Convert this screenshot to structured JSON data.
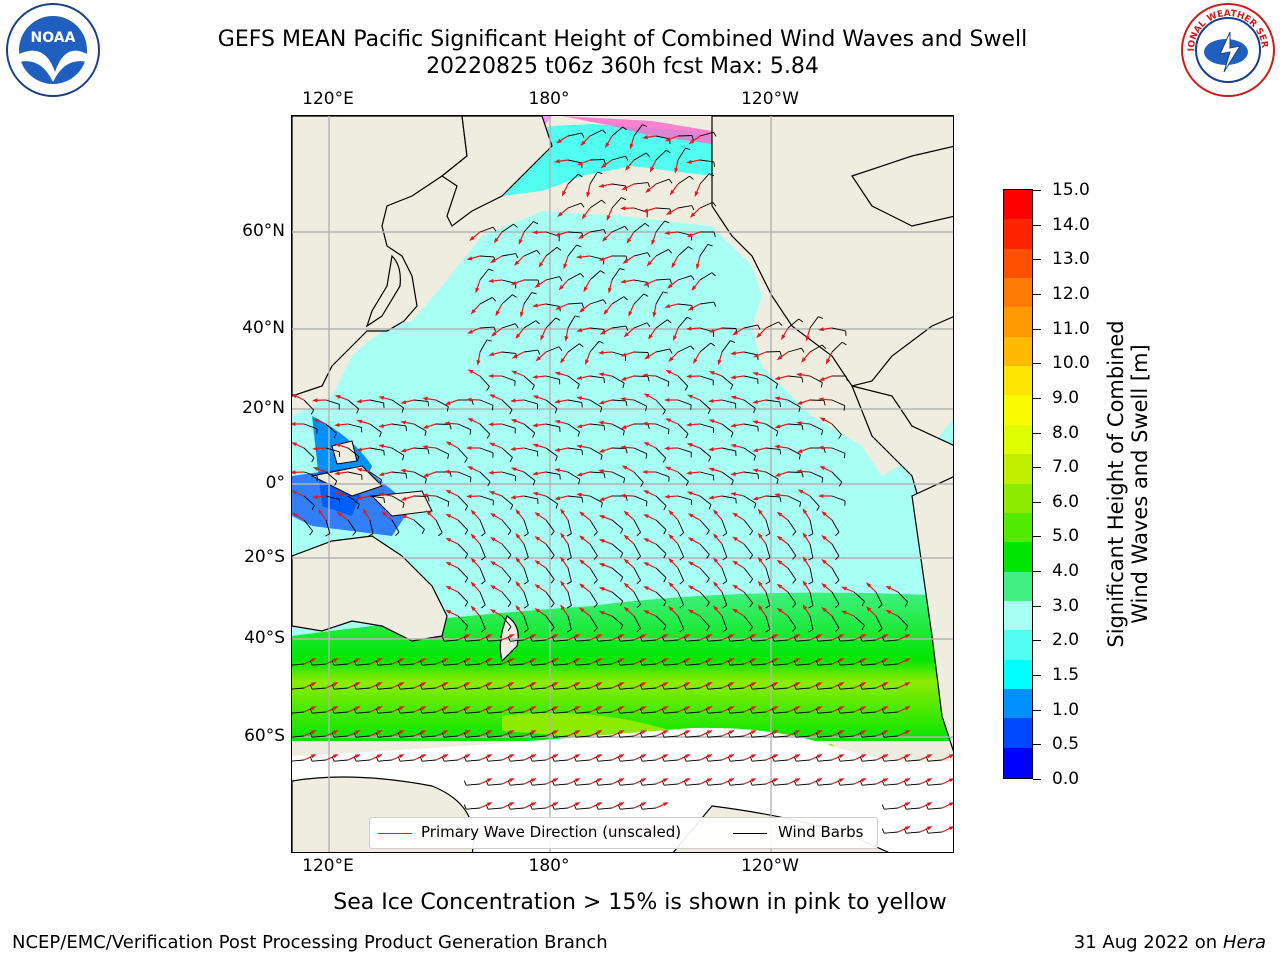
{
  "header": {
    "title_line1": "GEFS MEAN Pacific Significant Height of Combined Wind Waves and Swell",
    "title_line2": "20220825 t06z 360h fcst   Max: 5.84"
  },
  "logos": {
    "left": {
      "name": "noaa-logo",
      "text": "NOAA",
      "ring_text": "NATIONAL OCEANIC AND ATMOSPHERIC ADMINISTRATION · U.S. DEPARTMENT OF COMMERCE"
    },
    "right": {
      "name": "nws-logo",
      "ring_text": "NATIONAL WEATHER SERVICE"
    }
  },
  "map": {
    "lon_labels_top": [
      "120°E",
      "180°",
      "120°W"
    ],
    "lon_labels_bottom": [
      "120°E",
      "180°",
      "120°W"
    ],
    "lat_labels": [
      "60°N",
      "40°N",
      "20°N",
      "0°",
      "20°S",
      "40°S",
      "60°S"
    ],
    "colors": {
      "land": "#efeddf",
      "ice": "#ffffff",
      "wave_arrow": "#e41a1c",
      "barb": "#000000"
    }
  },
  "legend": {
    "primary_wave_label": "Primary Wave Direction (unscaled)",
    "wind_barbs_label": "Wind Barbs"
  },
  "colorbar": {
    "title_line1": "Significant Height of Combined",
    "title_line2": "Wind Waves and Swell [m]",
    "ticks": [
      "15.0",
      "14.0",
      "13.0",
      "12.0",
      "11.0",
      "10.0",
      "9.0",
      "8.0",
      "7.0",
      "6.0",
      "5.0",
      "4.0",
      "3.0",
      "2.0",
      "1.5",
      "1.0",
      "0.5",
      "0.0"
    ],
    "colors_top_to_bottom": [
      "#ff0000",
      "#ff2400",
      "#ff4f00",
      "#ff7a00",
      "#ff9900",
      "#ffbb00",
      "#ffe600",
      "#fafa00",
      "#dfff00",
      "#c0f000",
      "#8cec00",
      "#52ec00",
      "#00e600",
      "#40f080",
      "#a8fff4",
      "#50fff0",
      "#00ffff",
      "#0090ff",
      "#0048ff",
      "#0000ff"
    ],
    "unit": "m"
  },
  "notes": {
    "sea_ice": "Sea Ice Concentration > 15% is shown in pink to yellow"
  },
  "footer": {
    "left": "NCEP/EMC/Verification Post Processing Product Generation Branch",
    "right_date": "31 Aug 2022 on",
    "right_host": "Hera"
  }
}
